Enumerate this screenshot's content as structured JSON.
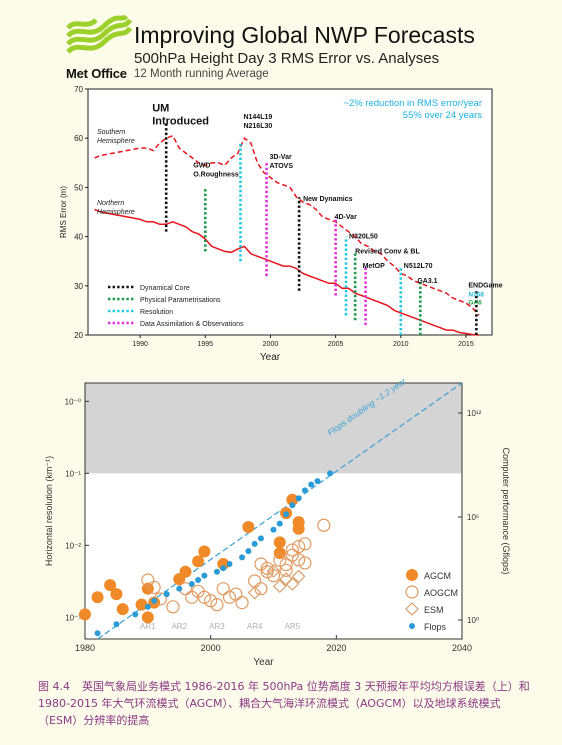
{
  "header": {
    "logo_text": "Met Office",
    "title": "Improving Global NWP Forecasts",
    "subtitle": "500hPa Height Day 3 RMS Error vs. Analyses",
    "note": "12 Month running Average"
  },
  "caption": {
    "figure": "图 4.4",
    "text": "英国气象局业务模式 1986-2016 年 500hPa 位势高度 3 天预报年平均均方根误差（上）和 1980-2015 年大气环流模式（AGCM）、耦合大气海洋环流模式（AOGCM）以及地球系统模式（ESM）分辨率的提高"
  },
  "chart_data": [
    {
      "type": "line",
      "title": "Improving Global NWP Forecasts",
      "xlabel": "Year",
      "ylabel": "RMS Error (m)",
      "xlim": [
        1986,
        2017
      ],
      "ylim": [
        20,
        70
      ],
      "xticks": [
        1990,
        1995,
        2000,
        2005,
        2010,
        2015
      ],
      "yticks": [
        20,
        30,
        40,
        50,
        60,
        70
      ],
      "grid": false,
      "annotation": [
        "~2% reduction in RMS error/year",
        "55% over 24 years"
      ],
      "series": [
        {
          "name": "Southern Hemisphere",
          "color": "#e8141c",
          "dash": true,
          "x": [
            1986.5,
            1987,
            1988,
            1989,
            1990,
            1990.5,
            1991,
            1991.5,
            1992,
            1992.5,
            1993,
            1993.5,
            1994,
            1994.5,
            1995,
            1995.5,
            1996,
            1996.5,
            1997,
            1997.5,
            1998,
            1998.5,
            1999,
            1999.5,
            2000,
            2000.5,
            2001,
            2001.5,
            2002,
            2002.5,
            2003,
            2003.5,
            2004,
            2004.5,
            2005,
            2005.5,
            2006,
            2006.5,
            2007,
            2007.5,
            2008,
            2008.5,
            2009,
            2009.5,
            2010,
            2010.5,
            2011,
            2011.5,
            2012,
            2012.5,
            2013,
            2013.5,
            2014,
            2014.5,
            2015,
            2015.5,
            2016
          ],
          "y": [
            56,
            56.5,
            57,
            57.5,
            58,
            58,
            57.5,
            59,
            60,
            60.5,
            58,
            57,
            56,
            55,
            54.5,
            55,
            55,
            54.5,
            56,
            57,
            60,
            59,
            55,
            53,
            52,
            51,
            50.5,
            50,
            48,
            47,
            46.5,
            45.5,
            44,
            43.5,
            43,
            42,
            41,
            40,
            38.5,
            38,
            37,
            36.5,
            35,
            34,
            32.5,
            32,
            31,
            30.5,
            30,
            29.5,
            29,
            28.5,
            27.5,
            27,
            26.5,
            25.5,
            24
          ]
        },
        {
          "name": "Northern Hemisphere",
          "color": "#e8141c",
          "dash": false,
          "x": [
            1986.5,
            1987,
            1988,
            1989,
            1990,
            1990.5,
            1991,
            1991.5,
            1992,
            1992.5,
            1993,
            1993.5,
            1994,
            1994.5,
            1995,
            1995.5,
            1996,
            1996.5,
            1997,
            1997.5,
            1998,
            1998.5,
            1999,
            1999.5,
            2000,
            2000.5,
            2001,
            2001.5,
            2002,
            2002.5,
            2003,
            2003.5,
            2004,
            2004.5,
            2005,
            2005.5,
            2006,
            2006.5,
            2007,
            2007.5,
            2008,
            2008.5,
            2009,
            2009.5,
            2010,
            2010.5,
            2011,
            2011.5,
            2012,
            2012.5,
            2013,
            2013.5,
            2014,
            2014.5,
            2015,
            2015.5,
            2016
          ],
          "y": [
            45.5,
            45,
            44.5,
            44,
            43.5,
            43,
            43,
            42.5,
            42.5,
            43,
            42.5,
            42,
            41,
            40.5,
            39.5,
            38,
            37.5,
            37,
            36.8,
            37.5,
            38,
            36.5,
            36,
            35.5,
            35,
            34.5,
            34,
            34,
            33.5,
            32.5,
            32,
            31.5,
            31,
            30.5,
            30.5,
            29.5,
            29.5,
            28.5,
            28,
            27.5,
            27,
            26.5,
            26,
            25,
            24.5,
            24,
            23.5,
            23,
            22.5,
            22,
            21.5,
            21,
            21,
            20.5,
            20.3,
            20.1,
            20
          ]
        }
      ],
      "events": [
        {
          "year": 1992,
          "y_bottom": 41,
          "y_top": 63,
          "label": "UM Introduced",
          "category": "Dynamical Core"
        },
        {
          "year": 1995,
          "y_bottom": 37,
          "y_top": 50,
          "label": "GWD O.Roughness",
          "category": "Physical Parametrisations"
        },
        {
          "year": 1997.7,
          "y_bottom": 35,
          "y_top": 59,
          "label": "N144L19 N216L30",
          "category": "Resolution"
        },
        {
          "year": 1999.7,
          "y_bottom": 32,
          "y_top": 55,
          "label": "3D-Var ATOVS",
          "category": "Data Assimilation & Observations"
        },
        {
          "year": 2002.2,
          "y_bottom": 29,
          "y_top": 48,
          "label": "New Dynamics",
          "category": "Dynamical Core"
        },
        {
          "year": 2005,
          "y_bottom": 28,
          "y_top": 44,
          "label": "4D-Var",
          "category": "Data Assimilation & Observations"
        },
        {
          "year": 2005.8,
          "y_bottom": 24,
          "y_top": 40,
          "label": "N320L50",
          "category": "Resolution"
        },
        {
          "year": 2006.5,
          "y_bottom": 23,
          "y_top": 37,
          "label": "Revised Conv & BL",
          "category": "Physical Parametrisations"
        },
        {
          "year": 2007.3,
          "y_bottom": 22,
          "y_top": 34,
          "label": "MetOP",
          "category": "Data Assimilation & Observations"
        },
        {
          "year": 2010,
          "y_bottom": 20,
          "y_top": 34,
          "label": "N512L70",
          "category": "Resolution"
        },
        {
          "year": 2011.5,
          "y_bottom": 20,
          "y_top": 31,
          "label": "GA3.1",
          "category": "Physical Parametrisations"
        },
        {
          "year": 2015.8,
          "y_bottom": 20,
          "y_top": 29,
          "label": "ENDGame",
          "category": "Dynamical Core"
        }
      ],
      "extra_labels": [
        {
          "text": "N768",
          "color": "#1eb8d8"
        },
        {
          "text": "GA6",
          "color": "#1a9a48"
        }
      ],
      "legend": {
        "position": "bottom-left",
        "items": [
          {
            "label": "Dynamical Core",
            "color": "#111111"
          },
          {
            "label": "Physical Parametrisations",
            "color": "#1a9a48"
          },
          {
            "label": "Resolution",
            "color": "#1ec8e0"
          },
          {
            "label": "Data Assimilation & Observations",
            "color": "#e030d8"
          }
        ]
      },
      "colors": {
        "annotation": "#1ab0e0"
      }
    },
    {
      "type": "scatter",
      "xlabel": "Year",
      "ylabel": "Horizontal resolution (km⁻¹)",
      "y2label": "Computer performance (Gflops)",
      "xlim": [
        1980,
        2040
      ],
      "xticks": [
        1980,
        2000,
        2020,
        2040
      ],
      "ylog": true,
      "ylim": [
        0.0005,
        1.8
      ],
      "yticks": [
        "10⁻³",
        "10⁻²",
        "10⁻¹",
        "10⁻⁰"
      ],
      "yticks_values": [
        0.001,
        0.01,
        0.1,
        1
      ],
      "y2ticks": [
        "10⁰",
        "10⁶",
        "10¹²"
      ],
      "shaded_above": 0.1,
      "trend_label": "Flops doubling ~1.2 year",
      "ar_labels": [
        {
          "text": "AR1",
          "x": 1990
        },
        {
          "text": "AR2",
          "x": 1995
        },
        {
          "text": "AR3",
          "x": 2001
        },
        {
          "text": "AR4",
          "x": 2007
        },
        {
          "text": "AR5",
          "x": 2013
        }
      ],
      "legend": {
        "position": "bottom-right",
        "items": [
          "AGCM",
          "AOGCM",
          "ESM",
          "Flops"
        ]
      },
      "colors": {
        "AGCM": "#f08a28",
        "AOGCM": "#e29a60",
        "ESM": "#d9a06a",
        "Flops": "#2b9bd8"
      },
      "series": [
        {
          "name": "AGCM",
          "points": [
            [
              1980,
              0.0011
            ],
            [
              1982,
              0.0019
            ],
            [
              1984,
              0.0028
            ],
            [
              1985,
              0.0021
            ],
            [
              1986,
              0.0013
            ],
            [
              1989,
              0.0015
            ],
            [
              1990,
              0.0025
            ],
            [
              1991,
              0.0016
            ],
            [
              1990,
              0.001
            ],
            [
              1995,
              0.0034
            ],
            [
              1996,
              0.0043
            ],
            [
              1998,
              0.006
            ],
            [
              1999,
              0.0082
            ],
            [
              2002,
              0.0055
            ],
            [
              2006,
              0.018
            ],
            [
              2011,
              0.011
            ],
            [
              2011,
              0.0078
            ],
            [
              2012,
              0.028
            ],
            [
              2013,
              0.043
            ],
            [
              2014,
              0.021
            ],
            [
              2014,
              0.017
            ]
          ]
        },
        {
          "name": "AOGCM",
          "points": [
            [
              1990,
              0.0033
            ],
            [
              1991,
              0.0026
            ],
            [
              1992,
              0.0018
            ],
            [
              1994,
              0.0014
            ],
            [
              1996,
              0.0025
            ],
            [
              1997,
              0.0019
            ],
            [
              1998,
              0.0023
            ],
            [
              1999,
              0.0019
            ],
            [
              2000,
              0.0017
            ],
            [
              2001,
              0.0015
            ],
            [
              2002,
              0.0025
            ],
            [
              2003,
              0.0019
            ],
            [
              2004,
              0.0021
            ],
            [
              2005,
              0.0016
            ],
            [
              2007,
              0.0032
            ],
            [
              2008,
              0.0025
            ],
            [
              2009,
              0.0043
            ],
            [
              2008,
              0.0055
            ],
            [
              2009,
              0.0048
            ],
            [
              2010,
              0.0038
            ],
            [
              2011,
              0.0062
            ],
            [
              2012,
              0.0054
            ],
            [
              2013,
              0.0073
            ],
            [
              2013,
              0.0086
            ],
            [
              2014,
              0.0063
            ],
            [
              2014,
              0.0096
            ],
            [
              2015,
              0.0105
            ],
            [
              2015,
              0.0057
            ],
            [
              2012,
              0.0045
            ],
            [
              2018,
              0.019
            ]
          ]
        },
        {
          "name": "ESM",
          "points": [
            [
              2007,
              0.0022
            ],
            [
              2010,
              0.0044
            ],
            [
              2012,
              0.0034
            ],
            [
              2013,
              0.0029
            ],
            [
              2014,
              0.0037
            ],
            [
              2011,
              0.0027
            ]
          ]
        },
        {
          "name": "Flops",
          "points": [
            [
              1982,
              0.0006
            ],
            [
              1985,
              0.0008
            ],
            [
              1988,
              0.0011
            ],
            [
              1990,
              0.0014
            ],
            [
              1991,
              0.0017
            ],
            [
              1993,
              0.0021
            ],
            [
              1995,
              0.0025
            ],
            [
              1997,
              0.0029
            ],
            [
              1998,
              0.0033
            ],
            [
              1999,
              0.0038
            ],
            [
              2001,
              0.0043
            ],
            [
              2002,
              0.0048
            ],
            [
              2003,
              0.0055
            ],
            [
              2005,
              0.0068
            ],
            [
              2006,
              0.0083
            ],
            [
              2007,
              0.0105
            ],
            [
              2008,
              0.0125
            ],
            [
              2010,
              0.0165
            ],
            [
              2011,
              0.02
            ],
            [
              2012,
              0.027
            ],
            [
              2013,
              0.036
            ],
            [
              2014,
              0.045
            ],
            [
              2015,
              0.058
            ],
            [
              2016,
              0.07
            ],
            [
              2017,
              0.078
            ],
            [
              2019,
              0.1
            ]
          ]
        }
      ]
    }
  ]
}
